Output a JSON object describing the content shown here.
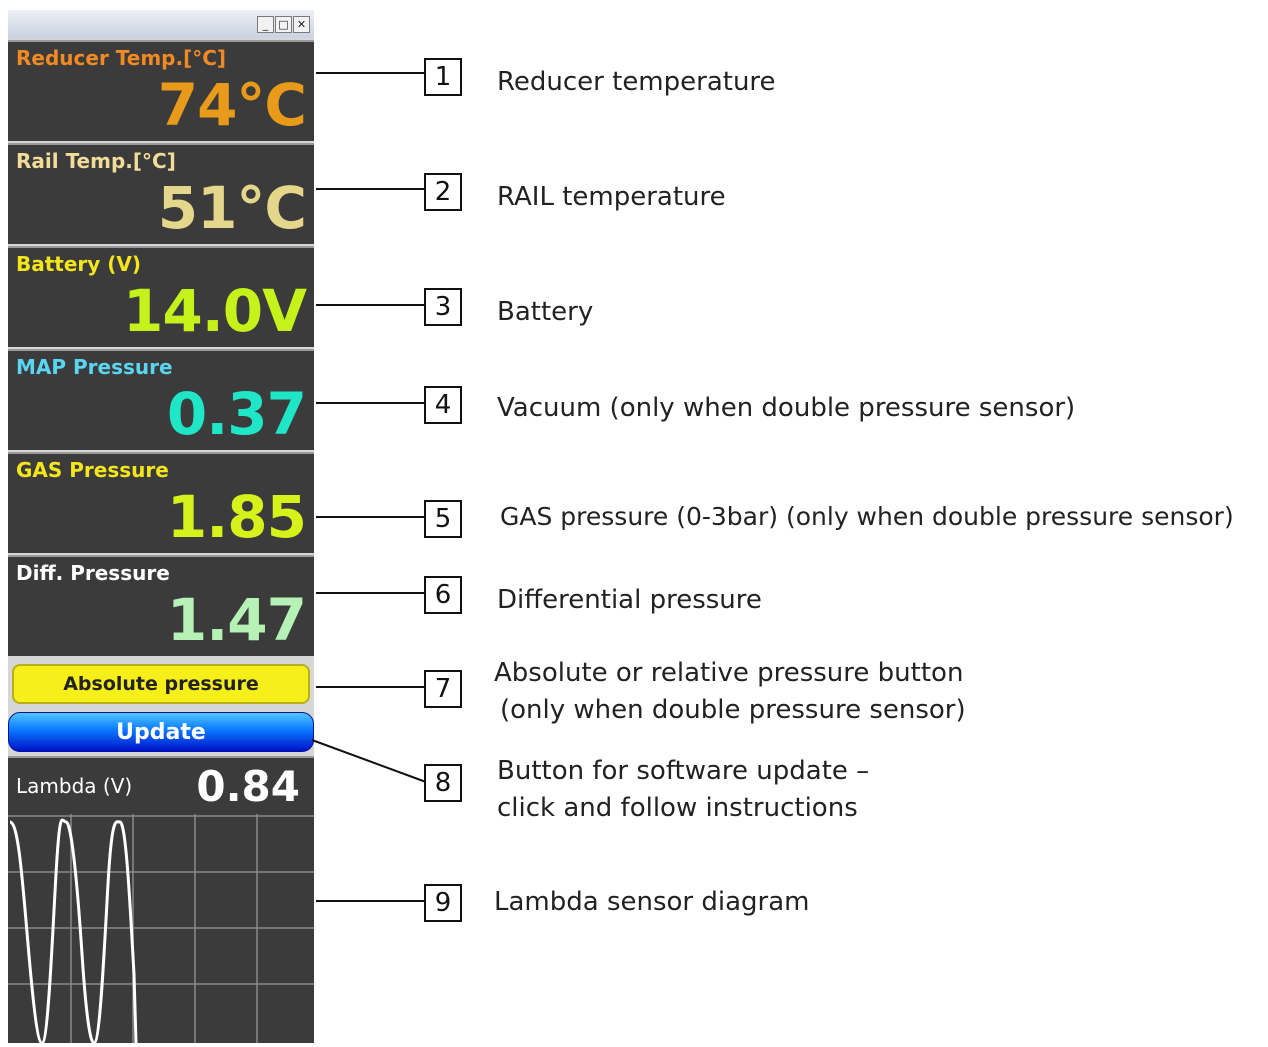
{
  "window_controls": {
    "minimize_icon": "_",
    "maximize_icon": "□",
    "close_icon": "✕"
  },
  "tiles": [
    {
      "label": "Reducer Temp.[°C]",
      "value": "74°C",
      "label_color": "#f08a24",
      "value_color": "#e89a1a"
    },
    {
      "label": "Rail Temp.[°C]",
      "value": "51°C",
      "label_color": "#f2dc9a",
      "value_color": "#e4d68a"
    },
    {
      "label": "Battery (V)",
      "value": "14.0V",
      "label_color": "#f4e61a",
      "value_color": "#c4f21a"
    },
    {
      "label": "MAP Pressure",
      "value": "0.37",
      "label_color": "#5ad6f2",
      "value_color": "#20e6c8"
    },
    {
      "label": "GAS Pressure",
      "value": "1.85",
      "label_color": "#f4e61a",
      "value_color": "#d6f21a"
    },
    {
      "label": "Diff. Pressure",
      "value": "1.47",
      "label_color": "#ffffff",
      "value_color": "#b6f2b6"
    }
  ],
  "absolute_button": "Absolute pressure",
  "update_button": "Update",
  "lambda": {
    "label": "Lambda (V)",
    "value": "0.84"
  },
  "annotations": [
    {
      "number": "1",
      "text": "Reducer temperature"
    },
    {
      "number": "2",
      "text": "RAIL temperature"
    },
    {
      "number": "3",
      "text": "Battery"
    },
    {
      "number": "4",
      "text": "Vacuum (only when double pressure sensor)"
    },
    {
      "number": "5",
      "text": "GAS pressure (0-3bar) (only when double pressure sensor)"
    },
    {
      "number": "6",
      "text": "Differential pressure"
    },
    {
      "number": "7",
      "text_line1": "Absolute or relative pressure button",
      "text_line2": "(only when double pressure sensor)"
    },
    {
      "number": "8",
      "text_line1": "Button for software update –",
      "text_line2": "click and follow instructions"
    },
    {
      "number": "9",
      "text": "Lambda sensor diagram"
    }
  ]
}
